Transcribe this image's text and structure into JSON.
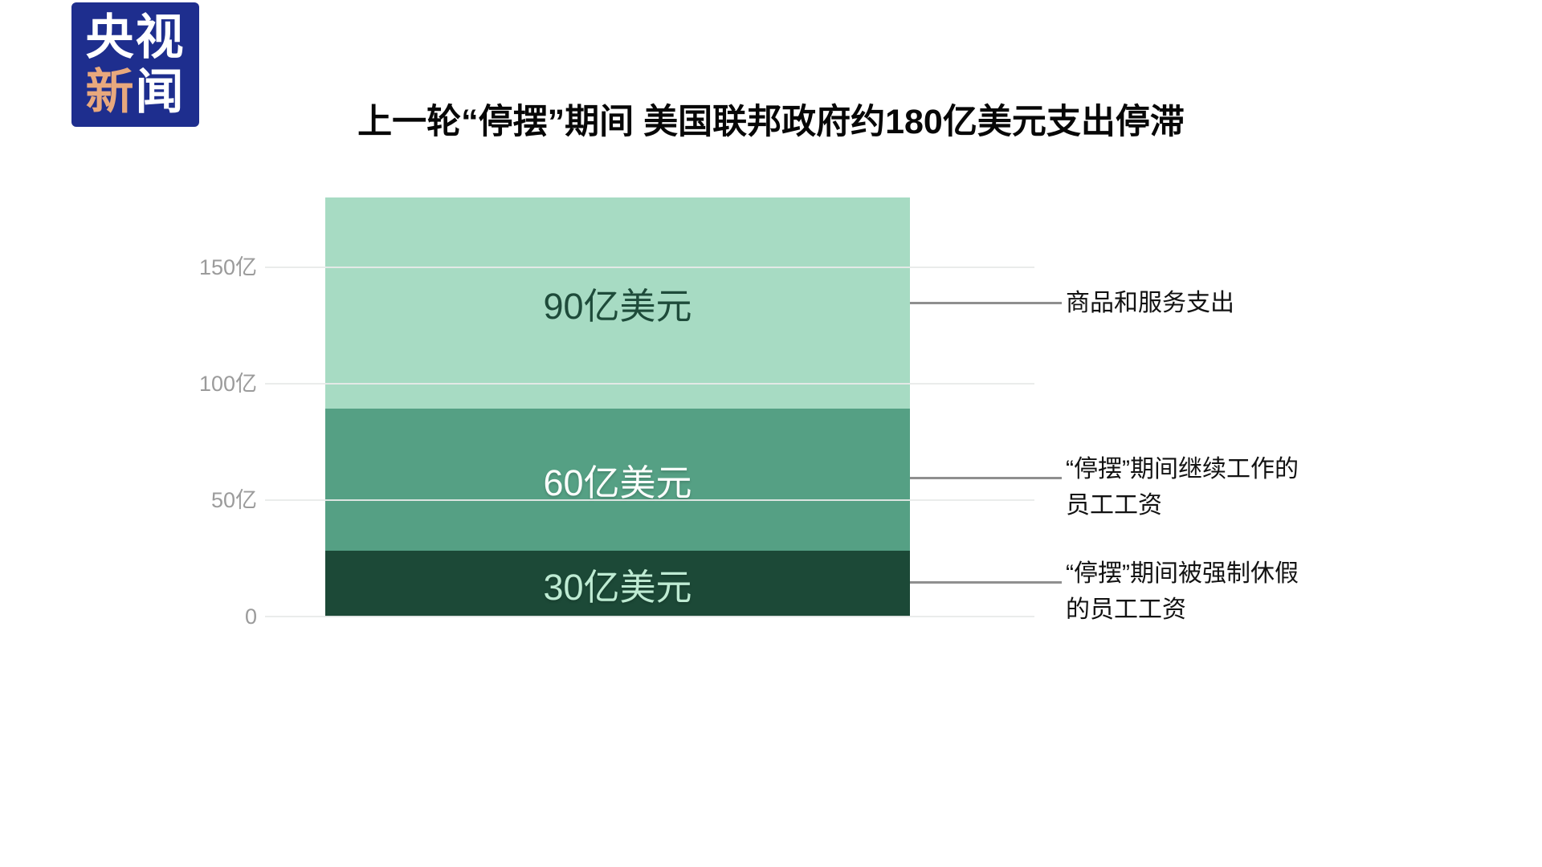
{
  "logo": {
    "line1": "央视",
    "line2_accent": "新",
    "line2_rest": "闻"
  },
  "chart_data": {
    "type": "bar",
    "variant": "single-stacked-column",
    "title": "上一轮“停摆”期间 美国联邦政府约180亿美元支出停滞",
    "unit": "亿美元",
    "total_value": 180,
    "segments": [
      {
        "name": "商品和服务支出",
        "value": 90,
        "value_label": "90亿美元",
        "color": "#A7DBC3",
        "text_color": "#1E4B3A"
      },
      {
        "name": "“停摆”期间继续工作的员工工资",
        "value": 60,
        "value_label": "60亿美元",
        "color": "#55A084",
        "text_color": "#FBFEFC"
      },
      {
        "name": "“停摆”期间被强制休假的员工工资",
        "value": 30,
        "value_label": "30亿美元",
        "color": "#1C4937",
        "text_color": "#BEEBD3"
      }
    ],
    "y_axis": {
      "tick_labels": [
        "150亿",
        "100亿",
        "50亿",
        "0"
      ],
      "tick_values": [
        150,
        100,
        50,
        0
      ],
      "range": [
        0,
        180
      ],
      "grid": true
    },
    "annotations": [
      {
        "lines": [
          "商品和服务支出",
          ""
        ]
      },
      {
        "lines": [
          "“停摆”期间继续工作的",
          "员工工资"
        ]
      },
      {
        "lines": [
          "“停摆”期间被强制休假",
          "的员工工资"
        ]
      }
    ],
    "legend_position": "right-leader-lines"
  },
  "colors": {
    "logo_bg": "#1E2E8E",
    "logo_accent": "#E8A87D",
    "gridline": "rgba(232,234,233,0.92)",
    "axis_text": "#9B9B9B",
    "leader": "#8F8F8F",
    "annotation_text": "#121212"
  }
}
